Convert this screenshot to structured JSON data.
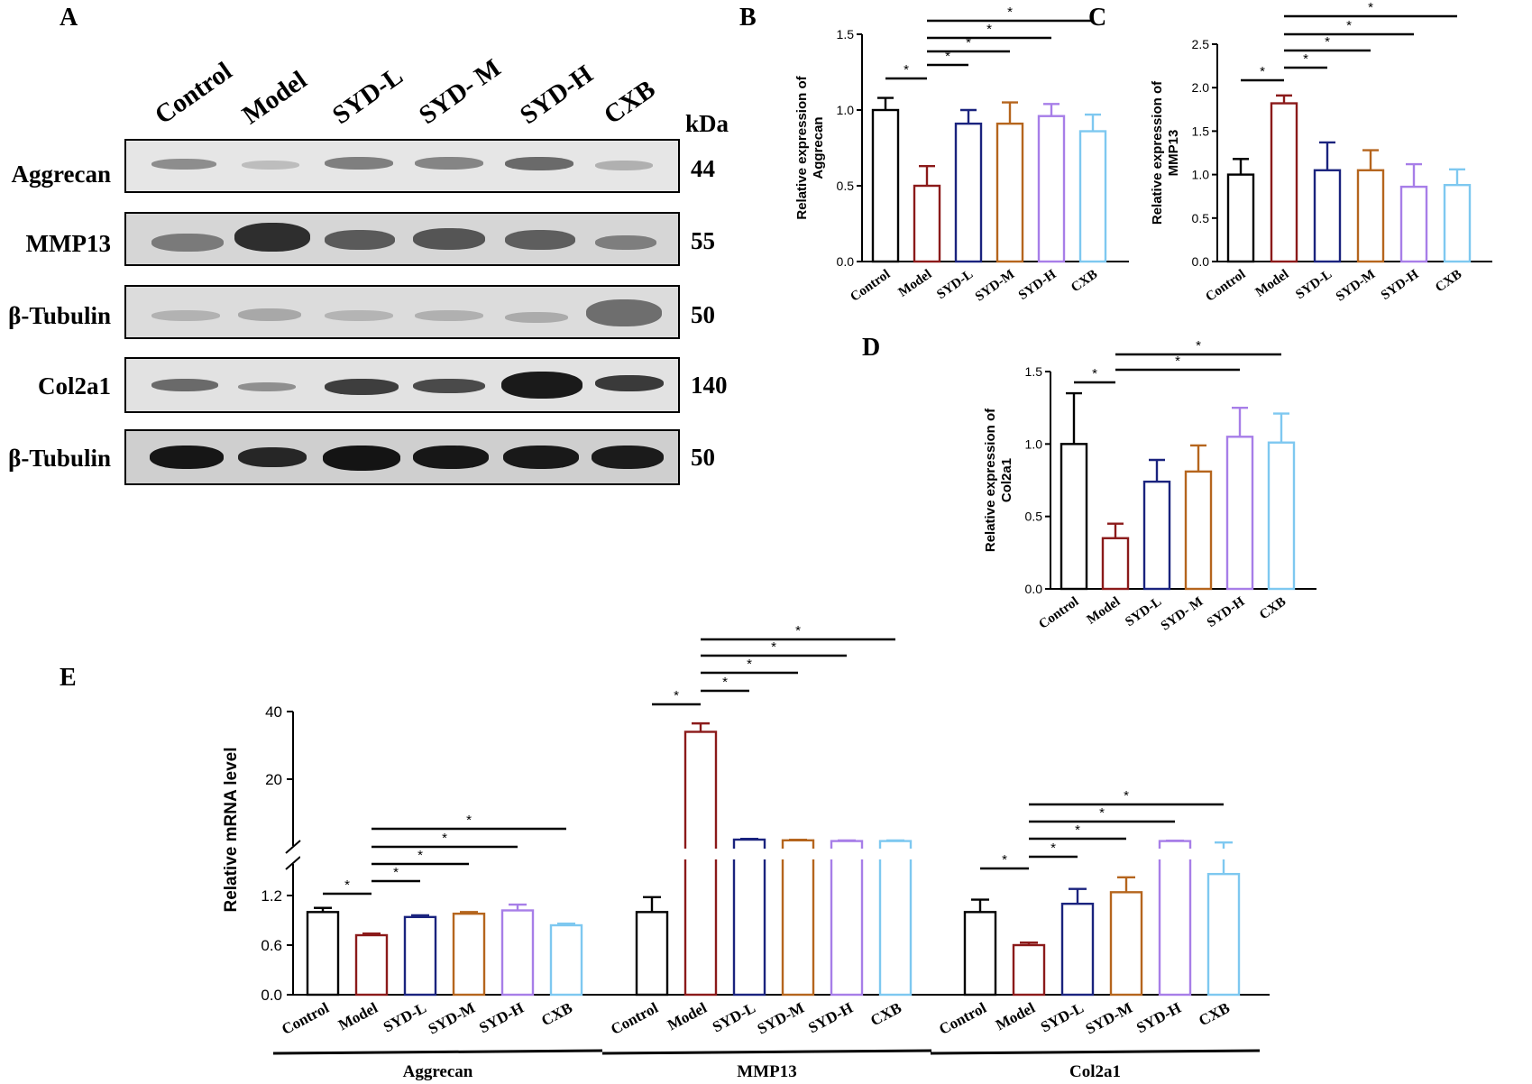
{
  "panel_a": {
    "letter": "A",
    "lanes": [
      "Control",
      "Model",
      "SYD-L",
      "SYD- M",
      "SYD-H",
      "CXB"
    ],
    "kda_header": "kDa",
    "rows": [
      {
        "label": "Aggrecan",
        "kda": "44"
      },
      {
        "label": "MMP13",
        "kda": "55"
      },
      {
        "label": "β-Tubulin",
        "kda": "50"
      },
      {
        "label": "Col2a1",
        "kda": "140"
      },
      {
        "label": "β-Tubulin",
        "kda": "50"
      }
    ]
  },
  "colors": {
    "control": "#000000",
    "model": "#8b1a1a",
    "syd_l": "#1a237e",
    "syd_m": "#b5651d",
    "syd_h": "#a77ee8",
    "cxb": "#7ec8f0"
  },
  "chart_data": [
    {
      "panel": "B",
      "type": "bar",
      "ylabel_line1": "Relative expression of",
      "ylabel_line2": "Aggrecan",
      "categories": [
        "Control",
        "Model",
        "SYD-L",
        "SYD-M",
        "SYD-H",
        "CXB"
      ],
      "values": [
        1.0,
        0.5,
        0.91,
        0.91,
        0.96,
        0.86
      ],
      "errors": [
        0.08,
        0.13,
        0.09,
        0.14,
        0.08,
        0.11
      ],
      "ylim": [
        0,
        1.5
      ],
      "yticks": [
        "0.0",
        "0.5",
        "1.0",
        "1.5"
      ],
      "significance": "*"
    },
    {
      "panel": "C",
      "type": "bar",
      "ylabel_line1": "Relative expression of",
      "ylabel_line2": "MMP13",
      "categories": [
        "Control",
        "Model",
        "SYD-L",
        "SYD-M",
        "SYD-H",
        "CXB"
      ],
      "values": [
        1.0,
        1.82,
        1.05,
        1.05,
        0.86,
        0.88
      ],
      "errors": [
        0.18,
        0.09,
        0.32,
        0.23,
        0.26,
        0.18
      ],
      "ylim": [
        0,
        2.5
      ],
      "yticks": [
        "0.0",
        "0.5",
        "1.0",
        "1.5",
        "2.0",
        "2.5"
      ],
      "significance": "*"
    },
    {
      "panel": "D",
      "type": "bar",
      "ylabel_line1": "Relative expression of",
      "ylabel_line2": "Col2a1",
      "categories": [
        "Control",
        "Model",
        "SYD-L",
        "SYD- M",
        "SYD-H",
        "CXB"
      ],
      "values": [
        1.0,
        0.35,
        0.74,
        0.81,
        1.05,
        1.01
      ],
      "errors": [
        0.35,
        0.1,
        0.15,
        0.18,
        0.2,
        0.2
      ],
      "ylim": [
        0,
        1.5
      ],
      "yticks": [
        "0.0",
        "0.5",
        "1.0",
        "1.5"
      ],
      "significance": "*"
    },
    {
      "panel": "E",
      "type": "bar",
      "ylabel": "Relative mRNA level",
      "categories": [
        "Control",
        "Model",
        "SYD-L",
        "SYD-M",
        "SYD-H",
        "CXB"
      ],
      "yticks_lower": [
        "0.0",
        "0.6",
        "1.2"
      ],
      "yticks_upper": [
        "20",
        "40"
      ],
      "groups": [
        {
          "name": "Aggrecan",
          "values": [
            1.0,
            0.72,
            0.94,
            0.98,
            1.02,
            0.84
          ],
          "errors": [
            0.05,
            0.02,
            0.02,
            0.02,
            0.07,
            0.02
          ]
        },
        {
          "name": "MMP13",
          "values": [
            1.0,
            34.0,
            2.0,
            1.9,
            1.8,
            1.8
          ],
          "errors": [
            0.18,
            2.5,
            0.1,
            0.08,
            0.08,
            0.08
          ]
        },
        {
          "name": "Col2a1",
          "values": [
            1.0,
            0.6,
            1.1,
            1.24,
            1.8,
            1.46
          ],
          "errors": [
            0.15,
            0.03,
            0.18,
            0.18,
            0.05,
            0.14
          ]
        }
      ],
      "significance": "*"
    }
  ]
}
